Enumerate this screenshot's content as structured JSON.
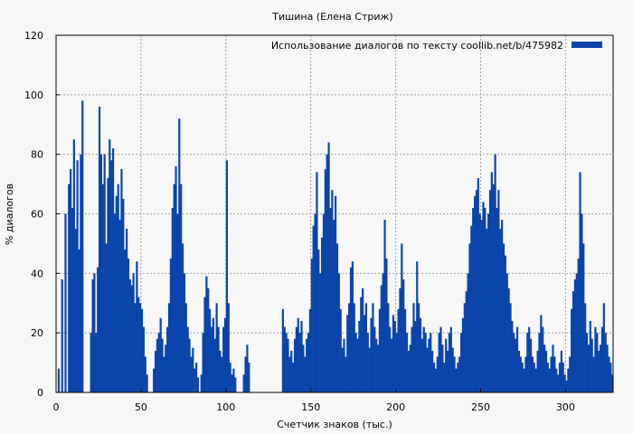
{
  "chart_data": {
    "type": "bar",
    "title": "Тишина (Елена Стриж)",
    "xlabel": "Счетчик знаков (тыс.)",
    "ylabel": "% диалогов",
    "xlim": [
      0,
      328
    ],
    "ylim": [
      0,
      120
    ],
    "x_ticks": [
      "0",
      "50",
      "100",
      "150",
      "200",
      "250",
      "300"
    ],
    "y_ticks": [
      "0",
      "20",
      "40",
      "60",
      "80",
      "100",
      "120"
    ],
    "grid": true,
    "legend_position": "top-right",
    "series": [
      {
        "name": "Использование диалогов по тексту  coollib.net/b/475982",
        "color": "#0a44aa",
        "points": [
          [
            1,
            8
          ],
          [
            3,
            38
          ],
          [
            5,
            60
          ],
          [
            7,
            70
          ],
          [
            8,
            75
          ],
          [
            9,
            62
          ],
          [
            10,
            85
          ],
          [
            11,
            55
          ],
          [
            12,
            78
          ],
          [
            13,
            48
          ],
          [
            14,
            80
          ],
          [
            15,
            98
          ],
          [
            16,
            0
          ],
          [
            20,
            20
          ],
          [
            21,
            38
          ],
          [
            22,
            40
          ],
          [
            23,
            20
          ],
          [
            24,
            42
          ],
          [
            25,
            96
          ],
          [
            26,
            80
          ],
          [
            27,
            70
          ],
          [
            28,
            80
          ],
          [
            29,
            50
          ],
          [
            30,
            72
          ],
          [
            31,
            85
          ],
          [
            32,
            78
          ],
          [
            33,
            82
          ],
          [
            34,
            60
          ],
          [
            35,
            66
          ],
          [
            36,
            70
          ],
          [
            37,
            58
          ],
          [
            38,
            75
          ],
          [
            39,
            65
          ],
          [
            40,
            48
          ],
          [
            41,
            55
          ],
          [
            42,
            45
          ],
          [
            43,
            38
          ],
          [
            44,
            36
          ],
          [
            45,
            40
          ],
          [
            46,
            30
          ],
          [
            47,
            44
          ],
          [
            48,
            32
          ],
          [
            49,
            30
          ],
          [
            50,
            28
          ],
          [
            51,
            22
          ],
          [
            52,
            12
          ],
          [
            53,
            6
          ],
          [
            55,
            0
          ],
          [
            57,
            8
          ],
          [
            58,
            14
          ],
          [
            59,
            18
          ],
          [
            60,
            20
          ],
          [
            61,
            25
          ],
          [
            62,
            18
          ],
          [
            63,
            12
          ],
          [
            64,
            16
          ],
          [
            65,
            22
          ],
          [
            66,
            30
          ],
          [
            67,
            45
          ],
          [
            68,
            62
          ],
          [
            69,
            70
          ],
          [
            70,
            76
          ],
          [
            71,
            60
          ],
          [
            72,
            92
          ],
          [
            73,
            70
          ],
          [
            74,
            50
          ],
          [
            75,
            40
          ],
          [
            76,
            30
          ],
          [
            77,
            22
          ],
          [
            78,
            18
          ],
          [
            79,
            12
          ],
          [
            80,
            15
          ],
          [
            81,
            8
          ],
          [
            82,
            10
          ],
          [
            83,
            5
          ],
          [
            85,
            6
          ],
          [
            86,
            20
          ],
          [
            87,
            32
          ],
          [
            88,
            39
          ],
          [
            89,
            35
          ],
          [
            90,
            28
          ],
          [
            91,
            22
          ],
          [
            92,
            25
          ],
          [
            93,
            18
          ],
          [
            94,
            30
          ],
          [
            95,
            22
          ],
          [
            96,
            14
          ],
          [
            97,
            12
          ],
          [
            98,
            22
          ],
          [
            99,
            25
          ],
          [
            100,
            78
          ],
          [
            101,
            30
          ],
          [
            102,
            10
          ],
          [
            103,
            6
          ],
          [
            104,
            8
          ],
          [
            105,
            5
          ],
          [
            110,
            6
          ],
          [
            111,
            12
          ],
          [
            112,
            16
          ],
          [
            113,
            10
          ],
          [
            120,
            0
          ],
          [
            133,
            28
          ],
          [
            134,
            22
          ],
          [
            135,
            20
          ],
          [
            136,
            18
          ],
          [
            137,
            12
          ],
          [
            138,
            14
          ],
          [
            139,
            10
          ],
          [
            140,
            18
          ],
          [
            141,
            22
          ],
          [
            142,
            25
          ],
          [
            143,
            20
          ],
          [
            144,
            24
          ],
          [
            145,
            16
          ],
          [
            146,
            12
          ],
          [
            147,
            18
          ],
          [
            148,
            20
          ],
          [
            149,
            28
          ],
          [
            150,
            45
          ],
          [
            151,
            56
          ],
          [
            152,
            60
          ],
          [
            153,
            74
          ],
          [
            154,
            48
          ],
          [
            155,
            40
          ],
          [
            156,
            52
          ],
          [
            157,
            60
          ],
          [
            158,
            75
          ],
          [
            159,
            80
          ],
          [
            160,
            84
          ],
          [
            161,
            62
          ],
          [
            162,
            68
          ],
          [
            163,
            58
          ],
          [
            164,
            66
          ],
          [
            165,
            50
          ],
          [
            166,
            40
          ],
          [
            167,
            28
          ],
          [
            168,
            15
          ],
          [
            169,
            18
          ],
          [
            170,
            12
          ],
          [
            171,
            26
          ],
          [
            172,
            30
          ],
          [
            173,
            42
          ],
          [
            174,
            44
          ],
          [
            175,
            30
          ],
          [
            176,
            20
          ],
          [
            177,
            18
          ],
          [
            178,
            24
          ],
          [
            179,
            32
          ],
          [
            180,
            35
          ],
          [
            181,
            26
          ],
          [
            182,
            30
          ],
          [
            183,
            20
          ],
          [
            184,
            15
          ],
          [
            185,
            25
          ],
          [
            186,
            30
          ],
          [
            187,
            22
          ],
          [
            188,
            18
          ],
          [
            189,
            16
          ],
          [
            190,
            28
          ],
          [
            191,
            36
          ],
          [
            192,
            40
          ],
          [
            193,
            58
          ],
          [
            194,
            45
          ],
          [
            195,
            30
          ],
          [
            196,
            22
          ],
          [
            197,
            18
          ],
          [
            198,
            26
          ],
          [
            199,
            24
          ],
          [
            200,
            20
          ],
          [
            201,
            28
          ],
          [
            202,
            35
          ],
          [
            203,
            50
          ],
          [
            204,
            38
          ],
          [
            205,
            28
          ],
          [
            206,
            20
          ],
          [
            207,
            14
          ],
          [
            208,
            16
          ],
          [
            209,
            22
          ],
          [
            210,
            30
          ],
          [
            211,
            24
          ],
          [
            212,
            44
          ],
          [
            213,
            30
          ],
          [
            214,
            25
          ],
          [
            215,
            18
          ],
          [
            216,
            22
          ],
          [
            217,
            20
          ],
          [
            218,
            15
          ],
          [
            219,
            18
          ],
          [
            220,
            20
          ],
          [
            221,
            14
          ],
          [
            222,
            10
          ],
          [
            223,
            8
          ],
          [
            224,
            12
          ],
          [
            225,
            20
          ],
          [
            226,
            22
          ],
          [
            227,
            16
          ],
          [
            228,
            10
          ],
          [
            229,
            18
          ],
          [
            230,
            14
          ],
          [
            231,
            20
          ],
          [
            232,
            22
          ],
          [
            233,
            15
          ],
          [
            234,
            12
          ],
          [
            235,
            8
          ],
          [
            236,
            10
          ],
          [
            237,
            12
          ],
          [
            238,
            20
          ],
          [
            239,
            25
          ],
          [
            240,
            30
          ],
          [
            241,
            34
          ],
          [
            242,
            40
          ],
          [
            243,
            50
          ],
          [
            244,
            56
          ],
          [
            245,
            62
          ],
          [
            246,
            66
          ],
          [
            247,
            68
          ],
          [
            248,
            72
          ],
          [
            249,
            60
          ],
          [
            250,
            58
          ],
          [
            251,
            64
          ],
          [
            252,
            62
          ],
          [
            253,
            55
          ],
          [
            254,
            60
          ],
          [
            255,
            68
          ],
          [
            256,
            74
          ],
          [
            257,
            70
          ],
          [
            258,
            80
          ],
          [
            259,
            62
          ],
          [
            260,
            68
          ],
          [
            261,
            55
          ],
          [
            262,
            58
          ],
          [
            263,
            50
          ],
          [
            264,
            46
          ],
          [
            265,
            40
          ],
          [
            266,
            35
          ],
          [
            267,
            30
          ],
          [
            268,
            24
          ],
          [
            269,
            20
          ],
          [
            270,
            18
          ],
          [
            271,
            22
          ],
          [
            272,
            14
          ],
          [
            273,
            12
          ],
          [
            274,
            10
          ],
          [
            275,
            8
          ],
          [
            276,
            12
          ],
          [
            277,
            20
          ],
          [
            278,
            22
          ],
          [
            279,
            18
          ],
          [
            280,
            12
          ],
          [
            281,
            10
          ],
          [
            282,
            8
          ],
          [
            283,
            14
          ],
          [
            284,
            20
          ],
          [
            285,
            26
          ],
          [
            286,
            22
          ],
          [
            287,
            16
          ],
          [
            288,
            14
          ],
          [
            289,
            10
          ],
          [
            290,
            8
          ],
          [
            291,
            12
          ],
          [
            292,
            16
          ],
          [
            293,
            12
          ],
          [
            294,
            8
          ],
          [
            295,
            6
          ],
          [
            296,
            10
          ],
          [
            297,
            14
          ],
          [
            298,
            10
          ],
          [
            299,
            6
          ],
          [
            300,
            4
          ],
          [
            301,
            8
          ],
          [
            302,
            12
          ],
          [
            303,
            28
          ],
          [
            304,
            34
          ],
          [
            305,
            38
          ],
          [
            306,
            40
          ],
          [
            307,
            45
          ],
          [
            308,
            74
          ],
          [
            309,
            60
          ],
          [
            310,
            50
          ],
          [
            311,
            30
          ],
          [
            312,
            20
          ],
          [
            313,
            16
          ],
          [
            314,
            24
          ],
          [
            315,
            18
          ],
          [
            316,
            12
          ],
          [
            317,
            22
          ],
          [
            318,
            20
          ],
          [
            319,
            14
          ],
          [
            320,
            16
          ],
          [
            321,
            22
          ],
          [
            322,
            30
          ],
          [
            323,
            20
          ],
          [
            324,
            16
          ],
          [
            325,
            12
          ],
          [
            326,
            10
          ],
          [
            327,
            6
          ]
        ]
      }
    ]
  }
}
